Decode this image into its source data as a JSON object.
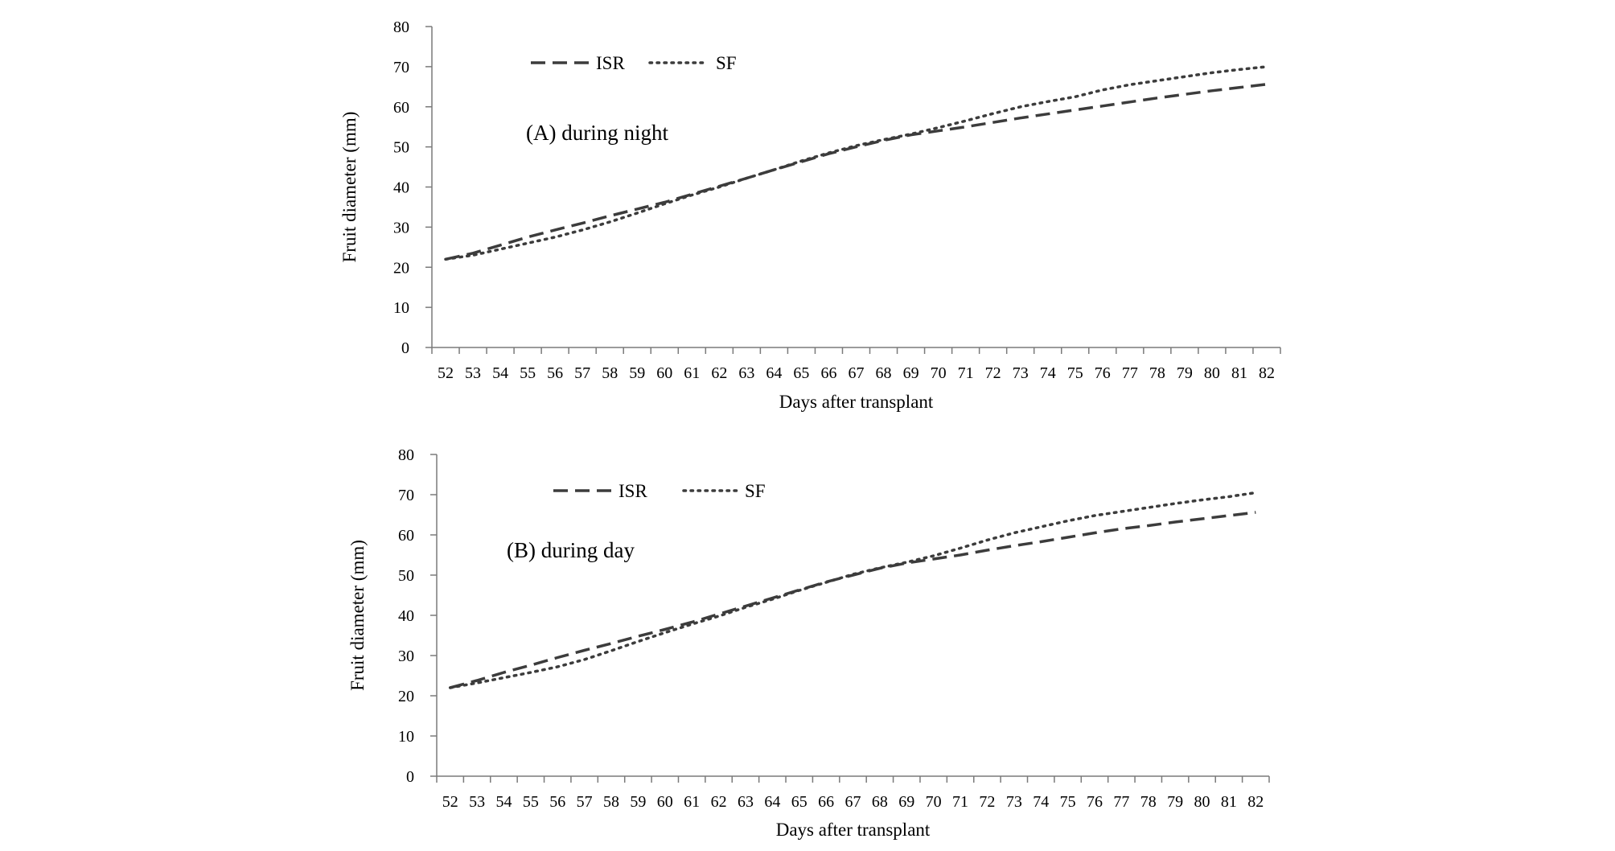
{
  "chart_data": [
    {
      "type": "line",
      "panel_label": "(A) during night",
      "xlabel": "Days after transplant",
      "ylabel": "Fruit diameter (mm)",
      "ylim": [
        0,
        80
      ],
      "yticks": [
        0,
        10,
        20,
        30,
        40,
        50,
        60,
        70,
        80
      ],
      "x": [
        52,
        53,
        54,
        55,
        56,
        57,
        58,
        59,
        60,
        61,
        62,
        63,
        64,
        65,
        66,
        67,
        68,
        69,
        70,
        71,
        72,
        73,
        74,
        75,
        76,
        77,
        78,
        79,
        80,
        81,
        82
      ],
      "legend": {
        "position": "top-left"
      },
      "series": [
        {
          "name": "ISR",
          "style": "dashed",
          "values": [
            22.0,
            23.5,
            25.5,
            27.5,
            29.3,
            31.0,
            32.8,
            34.5,
            36.2,
            38.2,
            40.2,
            42.2,
            44.3,
            46.3,
            48.3,
            50.0,
            51.6,
            53.0,
            54.0,
            55.0,
            56.1,
            57.2,
            58.2,
            59.2,
            60.2,
            61.2,
            62.2,
            63.1,
            64.0,
            64.8,
            65.6
          ]
        },
        {
          "name": "SF",
          "style": "dotted",
          "values": [
            22.0,
            23.0,
            24.5,
            26.0,
            27.5,
            29.3,
            31.3,
            33.5,
            35.8,
            38.0,
            40.0,
            42.2,
            44.3,
            46.5,
            48.5,
            50.3,
            51.8,
            53.2,
            54.8,
            56.5,
            58.3,
            60.0,
            61.3,
            62.5,
            64.2,
            65.5,
            66.5,
            67.5,
            68.5,
            69.3,
            70.0
          ]
        }
      ]
    },
    {
      "type": "line",
      "panel_label": "(B) during day",
      "xlabel": "Days after transplant",
      "ylabel": "Fruit diameter (mm)",
      "ylim": [
        0,
        80
      ],
      "yticks": [
        0,
        10,
        20,
        30,
        40,
        50,
        60,
        70,
        80
      ],
      "x": [
        52,
        53,
        54,
        55,
        56,
        57,
        58,
        59,
        60,
        61,
        62,
        63,
        64,
        65,
        66,
        67,
        68,
        69,
        70,
        71,
        72,
        73,
        74,
        75,
        76,
        77,
        78,
        79,
        80,
        81,
        82
      ],
      "legend": {
        "position": "top-left"
      },
      "series": [
        {
          "name": "ISR",
          "style": "dashed",
          "values": [
            22.0,
            23.8,
            25.8,
            27.6,
            29.5,
            31.3,
            33.0,
            34.8,
            36.5,
            38.3,
            40.3,
            42.3,
            44.3,
            46.3,
            48.3,
            50.0,
            51.7,
            53.0,
            54.0,
            55.0,
            56.2,
            57.3,
            58.3,
            59.4,
            60.5,
            61.5,
            62.3,
            63.2,
            64.0,
            64.8,
            65.6
          ]
        },
        {
          "name": "SF",
          "style": "dotted",
          "values": [
            22.0,
            23.2,
            24.5,
            25.8,
            27.2,
            29.0,
            31.2,
            33.5,
            35.7,
            37.8,
            39.8,
            42.0,
            44.0,
            46.2,
            48.2,
            50.2,
            51.8,
            53.2,
            54.8,
            56.7,
            58.7,
            60.5,
            62.0,
            63.5,
            64.8,
            65.8,
            66.8,
            67.8,
            68.7,
            69.5,
            70.5
          ]
        }
      ]
    }
  ]
}
